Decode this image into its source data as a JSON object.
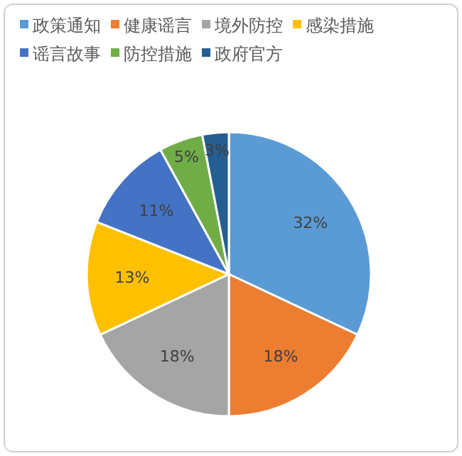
{
  "chart_data": {
    "type": "pie",
    "categories": [
      "政策通知",
      "健康谣言",
      "境外防控",
      "感染措施",
      "谣言故事",
      "防控措施",
      "政府官方"
    ],
    "values": [
      32,
      18,
      18,
      13,
      11,
      5,
      3
    ],
    "colors": [
      "#5b9bd5",
      "#ed7d31",
      "#a5a5a5",
      "#ffc000",
      "#4472c4",
      "#70ad47",
      "#255e91"
    ],
    "value_labels": [
      "32%",
      "18%",
      "18%",
      "13%",
      "11%",
      "5%",
      "3%"
    ],
    "legend": "top"
  }
}
